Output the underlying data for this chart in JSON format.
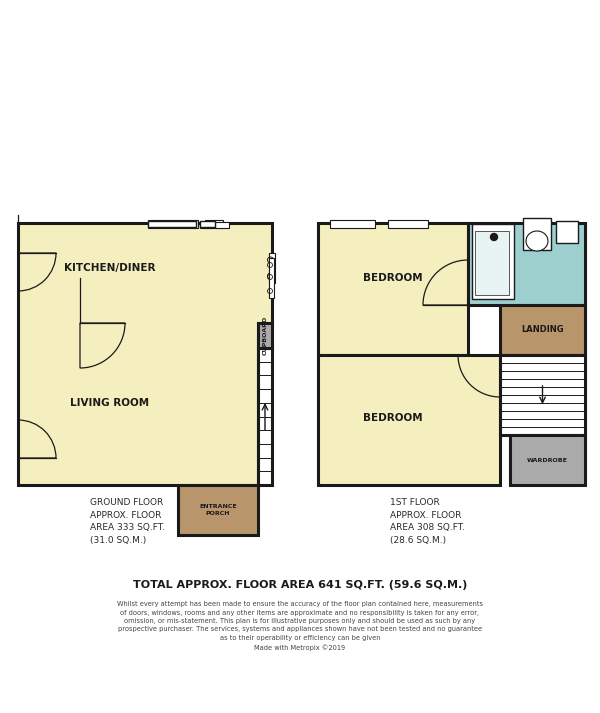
{
  "bg_color": "#ffffff",
  "wall_color": "#1a1a1a",
  "room_fill": "#f5efbf",
  "brown_fill": "#b8956a",
  "blue_fill": "#9ecfcf",
  "grey_fill": "#aaaaaa",
  "title_text": "TOTAL APPROX. FLOOR AREA 641 SQ.FT. (59.6 SQ.M.)",
  "disclaimer": "Whilst every attempt has been made to ensure the accuracy of the floor plan contained here, measurements\nof doors, windows, rooms and any other items are approximate and no responsibility is taken for any error,\nomission, or mis-statement. This plan is for illustrative purposes only and should be used as such by any\nprospective purchaser. The services, systems and appliances shown have not been tested and no guarantee\nas to their operability or efficiency can be given\nMade with Metropix ©2019",
  "ground_floor_text": "GROUND FLOOR\nAPPROX. FLOOR\nAREA 333 SQ.FT.\n(31.0 SQ.M.)",
  "first_floor_text": "1ST FLOOR\nAPPROX. FLOOR\nAREA 308 SQ.FT.\n(28.6 SQ.M.)"
}
